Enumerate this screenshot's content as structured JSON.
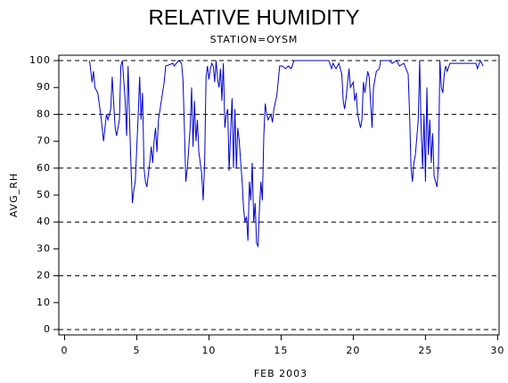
{
  "chart_data": {
    "type": "line",
    "title": "RELATIVE HUMIDITY",
    "subtitle": "STATION=OYSM",
    "x_label": "FEB 2003",
    "y_label": "AVG_RH",
    "xlim": [
      -0.4,
      30.1
    ],
    "ylim": [
      -2,
      102
    ],
    "xticks": [
      0,
      5,
      10,
      15,
      20,
      25,
      30
    ],
    "yticks": [
      0,
      10,
      20,
      30,
      40,
      50,
      60,
      70,
      80,
      90,
      100
    ],
    "ygrid": [
      0,
      20,
      40,
      60,
      80,
      100
    ],
    "x": [
      1.73,
      1.9,
      2.0,
      2.1,
      2.3,
      2.5,
      2.7,
      2.8,
      2.9,
      3.0,
      3.2,
      3.3,
      3.5,
      3.6,
      3.8,
      3.9,
      4.0,
      4.2,
      4.3,
      4.4,
      4.5,
      4.6,
      4.7,
      4.8,
      4.9,
      5.1,
      5.2,
      5.3,
      5.4,
      5.5,
      5.6,
      5.7,
      5.9,
      6.0,
      6.1,
      6.2,
      6.3,
      6.4,
      6.5,
      6.7,
      6.9,
      7.0,
      7.5,
      7.6,
      7.9,
      8.1,
      8.2,
      8.3,
      8.4,
      8.5,
      8.7,
      8.8,
      8.9,
      9.0,
      9.1,
      9.2,
      9.3,
      9.5,
      9.6,
      9.7,
      9.8,
      9.9,
      10.0,
      10.1,
      10.2,
      10.3,
      10.4,
      10.5,
      10.6,
      10.7,
      10.8,
      10.9,
      11.0,
      11.1,
      11.2,
      11.3,
      11.4,
      11.5,
      11.6,
      11.7,
      11.8,
      11.9,
      12.0,
      12.1,
      12.2,
      12.3,
      12.4,
      12.5,
      12.6,
      12.7,
      12.8,
      12.9,
      13.0,
      13.1,
      13.2,
      13.3,
      13.4,
      13.5,
      13.6,
      13.7,
      13.8,
      13.9,
      14.0,
      14.1,
      14.3,
      14.4,
      14.5,
      14.7,
      14.9,
      15.1,
      15.3,
      15.5,
      15.7,
      15.9,
      16.5,
      17.5,
      18.3,
      18.5,
      18.6,
      18.8,
      19.0,
      19.2,
      19.3,
      19.4,
      19.5,
      19.7,
      19.8,
      20.0,
      20.1,
      20.2,
      20.3,
      20.5,
      20.6,
      20.7,
      20.8,
      21.0,
      21.1,
      21.3,
      21.4,
      21.6,
      21.8,
      21.9,
      22.5,
      22.7,
      23.0,
      23.2,
      23.5,
      23.8,
      23.9,
      24.0,
      24.1,
      24.2,
      24.3,
      24.5,
      24.6,
      24.7,
      24.8,
      24.9,
      25.0,
      25.1,
      25.2,
      25.3,
      25.4,
      25.5,
      25.6,
      25.7,
      25.8,
      25.9,
      26.0,
      26.1,
      26.2,
      26.3,
      26.4,
      26.5,
      26.7,
      27.5,
      28.5,
      28.6,
      28.8,
      29.0
    ],
    "series": [
      {
        "color": "#0000cc",
        "values": [
          100,
          92,
          96,
          90,
          88,
          80,
          70,
          75,
          80,
          78,
          82,
          94,
          75,
          72,
          78,
          98,
          100,
          85,
          72,
          98,
          78,
          60,
          47,
          52,
          55,
          80,
          94,
          78,
          88,
          60,
          55,
          53,
          62,
          68,
          62,
          70,
          75,
          66,
          78,
          85,
          92,
          98,
          99,
          98,
          100,
          99,
          93,
          75,
          55,
          60,
          75,
          90,
          68,
          85,
          70,
          78,
          66,
          58,
          48,
          62,
          94,
          98,
          93,
          97,
          99,
          98,
          92,
          100,
          93,
          90,
          97,
          85,
          99,
          75,
          80,
          82,
          59,
          73,
          86,
          60,
          82,
          60,
          75,
          70,
          62,
          55,
          45,
          40,
          42,
          33,
          55,
          48,
          62,
          40,
          47,
          32,
          31,
          45,
          55,
          48,
          72,
          84,
          80,
          78,
          80,
          77,
          82,
          87,
          98,
          98,
          97,
          98,
          97,
          100,
          100,
          100,
          100,
          97,
          99,
          97,
          99,
          95,
          85,
          82,
          86,
          97,
          90,
          92,
          85,
          88,
          80,
          75,
          78,
          92,
          88,
          96,
          94,
          75,
          90,
          96,
          97,
          100,
          100,
          99,
          100,
          98,
          99,
          95,
          80,
          60,
          55,
          62,
          65,
          78,
          100,
          75,
          60,
          80,
          55,
          90,
          65,
          78,
          62,
          73,
          57,
          55,
          53,
          62,
          100,
          90,
          88,
          95,
          98,
          96,
          99,
          99,
          99,
          97,
          100,
          98
        ]
      }
    ]
  }
}
